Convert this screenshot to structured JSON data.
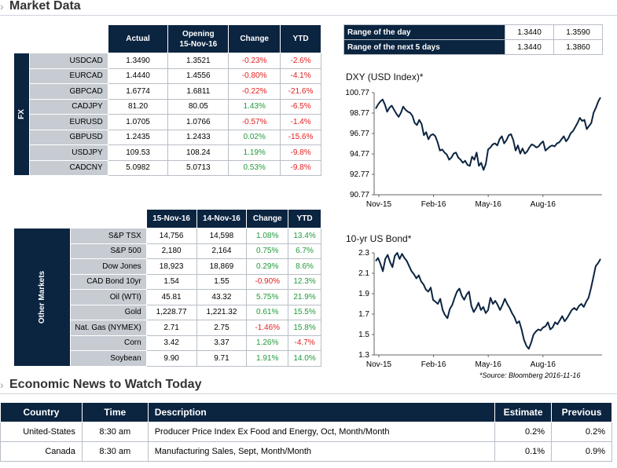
{
  "market_title": "Market Data",
  "news_title": "Economic News to Watch Today",
  "fx": {
    "side_label": "FX",
    "headers": [
      "Actual",
      "Opening 15-Nov-16",
      "Change",
      "YTD"
    ],
    "header_opening_line1": "Opening",
    "header_opening_line2": "15-Nov-16",
    "rows": [
      {
        "name": "USDCAD",
        "actual": "1.3490",
        "opening": "1.3521",
        "change": "-0.23%",
        "ytd": "-2.6%",
        "change_sign": "neg",
        "ytd_sign": "neg"
      },
      {
        "name": "EURCAD",
        "actual": "1.4440",
        "opening": "1.4556",
        "change": "-0.80%",
        "ytd": "-4.1%",
        "change_sign": "neg",
        "ytd_sign": "neg"
      },
      {
        "name": "GBPCAD",
        "actual": "1.6774",
        "opening": "1.6811",
        "change": "-0.22%",
        "ytd": "-21.6%",
        "change_sign": "neg",
        "ytd_sign": "neg"
      },
      {
        "name": "CADJPY",
        "actual": "81.20",
        "opening": "80.05",
        "change": "1.43%",
        "ytd": "-6.5%",
        "change_sign": "pos",
        "ytd_sign": "neg"
      },
      {
        "name": "EURUSD",
        "actual": "1.0705",
        "opening": "1.0766",
        "change": "-0.57%",
        "ytd": "-1.4%",
        "change_sign": "neg",
        "ytd_sign": "neg"
      },
      {
        "name": "GBPUSD",
        "actual": "1.2435",
        "opening": "1.2433",
        "change": "0.02%",
        "ytd": "-15.6%",
        "change_sign": "pos",
        "ytd_sign": "neg"
      },
      {
        "name": "USDJPY",
        "actual": "109.53",
        "opening": "108.24",
        "change": "1.19%",
        "ytd": "-9.8%",
        "change_sign": "pos",
        "ytd_sign": "neg"
      },
      {
        "name": "CADCNY",
        "actual": "5.0982",
        "opening": "5.0713",
        "change": "0.53%",
        "ytd": "-9.8%",
        "change_sign": "pos",
        "ytd_sign": "neg"
      }
    ]
  },
  "other": {
    "side_label": "Other Markets",
    "headers": [
      "15-Nov-16",
      "14-Nov-16",
      "Change",
      "YTD"
    ],
    "rows": [
      {
        "name": "S&P TSX",
        "today": "14,756",
        "prev": "14,598",
        "change": "1.08%",
        "ytd": "13.4%",
        "change_sign": "pos",
        "ytd_sign": "pos"
      },
      {
        "name": "S&P 500",
        "today": "2,180",
        "prev": "2,164",
        "change": "0.75%",
        "ytd": "6.7%",
        "change_sign": "pos",
        "ytd_sign": "pos"
      },
      {
        "name": "Dow Jones",
        "today": "18,923",
        "prev": "18,869",
        "change": "0.29%",
        "ytd": "8.6%",
        "change_sign": "pos",
        "ytd_sign": "pos"
      },
      {
        "name": "CAD Bond 10yr",
        "today": "1.54",
        "prev": "1.55",
        "change": "-0.90%",
        "ytd": "12.3%",
        "change_sign": "neg",
        "ytd_sign": "pos"
      },
      {
        "name": "Oil (WTI)",
        "today": "45.81",
        "prev": "43.32",
        "change": "5.75%",
        "ytd": "21.9%",
        "change_sign": "pos",
        "ytd_sign": "pos"
      },
      {
        "name": "Gold",
        "today": "1,228.77",
        "prev": "1,221.32",
        "change": "0.61%",
        "ytd": "15.5%",
        "change_sign": "pos",
        "ytd_sign": "pos"
      },
      {
        "name": "Nat. Gas (NYMEX)",
        "today": "2.71",
        "prev": "2.75",
        "change": "-1.46%",
        "ytd": "15.8%",
        "change_sign": "neg",
        "ytd_sign": "pos"
      },
      {
        "name": "Corn",
        "today": "3.42",
        "prev": "3.37",
        "change": "1.26%",
        "ytd": "-4.7%",
        "change_sign": "pos",
        "ytd_sign": "neg"
      },
      {
        "name": "Soybean",
        "today": "9.90",
        "prev": "9.71",
        "change": "1.91%",
        "ytd": "14.0%",
        "change_sign": "pos",
        "ytd_sign": "pos"
      }
    ]
  },
  "range": [
    {
      "label": "Range of the day",
      "low": "1.3440",
      "high": "1.3590"
    },
    {
      "label": "Range of the next 5 days",
      "low": "1.3440",
      "high": "1.3860"
    }
  ],
  "chart_data": [
    {
      "type": "line",
      "title": "DXY (USD Index)*",
      "x_tick_labels": [
        "Nov-15",
        "Feb-16",
        "May-16",
        "Aug-16"
      ],
      "y_tick_labels": [
        "100.77",
        "98.77",
        "96.77",
        "94.77",
        "92.77",
        "90.77"
      ],
      "ylim": [
        90.77,
        100.77
      ],
      "color": "#0b2440",
      "series": [
        {
          "values": [
            99.2,
            99.6,
            99.9,
            100.1,
            99.6,
            98.9,
            99.3,
            99.5,
            99.1,
            98.7,
            98.4,
            98.8,
            99.4,
            99.1,
            98.9,
            98.8,
            98.5,
            97.8,
            97.6,
            98.1,
            97.7,
            96.6,
            96.9,
            96.2,
            96.6,
            96.7,
            96.5,
            95.9,
            95.1,
            95.2,
            94.9,
            94.7,
            94.2,
            94.4,
            94.8,
            94.9,
            94.4,
            94.2,
            93.9,
            94.1,
            93.7,
            93.6,
            94.5,
            94.2,
            94.9,
            93.6,
            93.9,
            93.2,
            93.8,
            95.2,
            95.4,
            95.7,
            95.8,
            95.6,
            96.2,
            96.5,
            95.8,
            96.1,
            96.6,
            96.7,
            96.1,
            95.1,
            95.6,
            94.8,
            95.3,
            94.8,
            95.0,
            95.4,
            95.7,
            95.6,
            95.4,
            95.5,
            95.8,
            96.0,
            95.1,
            95.3,
            95.5,
            95.6,
            95.5,
            95.8,
            95.9,
            96.2,
            96.5,
            96.0,
            96.3,
            96.8,
            97.0,
            97.4,
            97.8,
            98.3,
            98.0,
            98.1,
            97.2,
            97.5,
            97.8,
            98.8,
            99.3,
            99.9,
            100.3
          ]
        }
      ]
    },
    {
      "type": "line",
      "title": "10-yr US Bond*",
      "x_tick_labels": [
        "Nov-15",
        "Feb-16",
        "May-16",
        "Aug-16"
      ],
      "y_tick_labels": [
        "2.3",
        "2.1",
        "1.9",
        "1.7",
        "1.5",
        "1.3"
      ],
      "ylim": [
        1.3,
        2.3
      ],
      "color": "#0b2440",
      "series": [
        {
          "values": [
            2.22,
            2.25,
            2.19,
            2.12,
            2.24,
            2.28,
            2.21,
            2.16,
            2.27,
            2.3,
            2.24,
            2.29,
            2.25,
            2.22,
            2.17,
            2.12,
            2.09,
            2.05,
            2.08,
            2.02,
            1.99,
            1.94,
            1.92,
            1.96,
            1.84,
            1.82,
            1.8,
            1.85,
            1.74,
            1.69,
            1.66,
            1.75,
            1.79,
            1.86,
            1.92,
            1.95,
            1.88,
            1.84,
            1.89,
            1.92,
            1.78,
            1.72,
            1.76,
            1.81,
            1.74,
            1.77,
            1.71,
            1.74,
            1.86,
            1.8,
            1.83,
            1.79,
            1.74,
            1.79,
            1.85,
            1.8,
            1.76,
            1.71,
            1.67,
            1.61,
            1.63,
            1.55,
            1.45,
            1.39,
            1.36,
            1.42,
            1.5,
            1.53,
            1.55,
            1.54,
            1.57,
            1.58,
            1.62,
            1.55,
            1.57,
            1.62,
            1.6,
            1.64,
            1.68,
            1.63,
            1.66,
            1.7,
            1.74,
            1.76,
            1.74,
            1.78,
            1.8,
            1.77,
            1.82,
            1.86,
            1.95,
            2.06,
            2.17,
            2.2,
            2.24
          ]
        }
      ]
    }
  ],
  "source_note": "*Source: Bloomberg  2016-11-16",
  "news": {
    "headers": [
      "Country",
      "Time",
      "Description",
      "Estimate",
      "Previous"
    ],
    "rows": [
      {
        "country": "United-States",
        "time": "8:30 am",
        "description": "Producer Price Index Ex Food and Energy, Oct, Month/Month",
        "estimate": "0.2%",
        "previous": "0.2%"
      },
      {
        "country": "Canada",
        "time": "8:30 am",
        "description": "Manufacturing Sales, Sept, Month/Month",
        "estimate": "0.1%",
        "previous": "0.9%"
      }
    ]
  }
}
